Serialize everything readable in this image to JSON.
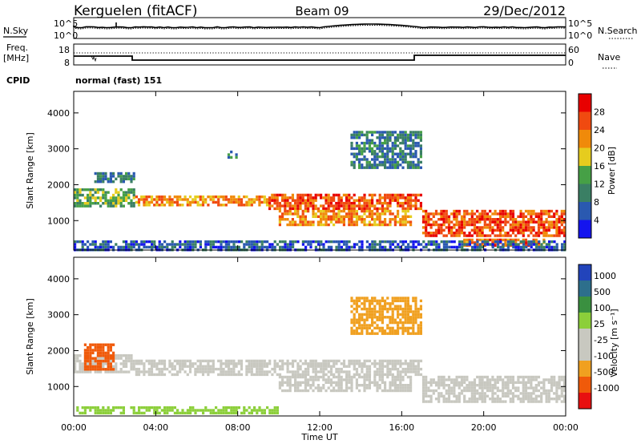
{
  "header": {
    "station": "Kerguelen (fitACF)",
    "beam": "Beam 09",
    "date": "29/Dec/2012"
  },
  "nsky": {
    "label": "N.Sky",
    "right_label": "N.Search",
    "tick_top": "10^5",
    "tick_bottom": "10^0",
    "right_tick_top": "10^5",
    "right_tick_bottom": "10^0"
  },
  "freq": {
    "label_line1": "Freq.",
    "label_line2": "[MHz]",
    "tick_top": "18",
    "tick_bottom": "8",
    "right_label": "Nave",
    "right_tick_top": "60",
    "right_tick_bottom": "0"
  },
  "cpid": {
    "label": "CPID",
    "mode": "normal (fast) 151"
  },
  "chart_data": [
    {
      "type": "heatmap",
      "panel": "power",
      "ylabel": "Slant Range [km]",
      "yticks": [
        "1000",
        "2000",
        "3000",
        "4000"
      ],
      "ylim": [
        180,
        4600
      ],
      "xlim_hours": [
        0,
        24
      ],
      "colorbar": {
        "label": "Power [dB]",
        "ticks": [
          "4",
          "8",
          "12",
          "16",
          "20",
          "24",
          "28"
        ],
        "range": [
          0,
          32
        ],
        "colors": [
          "#1414ee",
          "#2a59b0",
          "#3a7f64",
          "#46a046",
          "#e6cc1e",
          "#f08a0a",
          "#f04a10",
          "#e80000"
        ]
      },
      "bands": [
        {
          "t0": 0.0,
          "t1": 3.0,
          "r0": 1400,
          "r1": 1900,
          "level": 14
        },
        {
          "t0": 1.0,
          "t1": 3.0,
          "r0": 2050,
          "r1": 2350,
          "level": 9
        },
        {
          "t0": 3.0,
          "t1": 9.5,
          "r0": 1450,
          "r1": 1700,
          "level": 22
        },
        {
          "t0": 9.5,
          "t1": 17.0,
          "r0": 1350,
          "r1": 1750,
          "level": 26
        },
        {
          "t0": 10.0,
          "t1": 16.5,
          "r0": 900,
          "r1": 1300,
          "level": 22
        },
        {
          "t0": 17.0,
          "t1": 24.0,
          "r0": 600,
          "r1": 1300,
          "level": 26
        },
        {
          "t0": 19.0,
          "t1": 23.0,
          "r0": 300,
          "r1": 500,
          "level": 24
        },
        {
          "t0": 0.0,
          "t1": 24.0,
          "r0": 200,
          "r1": 450,
          "level": 6
        },
        {
          "t0": 13.5,
          "t1": 17.0,
          "r0": 2500,
          "r1": 3500,
          "level": 9
        },
        {
          "t0": 7.5,
          "t1": 8.0,
          "r0": 2750,
          "r1": 2950,
          "level": 10
        }
      ]
    },
    {
      "type": "heatmap",
      "panel": "velocity",
      "ylabel": "Slant Range [km]",
      "yticks": [
        "1000",
        "2000",
        "3000",
        "4000"
      ],
      "ylim": [
        180,
        4600
      ],
      "xlim_hours": [
        0,
        24
      ],
      "xticks": [
        "00:00",
        "04:00",
        "08:00",
        "12:00",
        "16:00",
        "20:00",
        "00:00"
      ],
      "xlabel": "Time UT",
      "colorbar": {
        "label": "Velocity [m s⁻¹]",
        "ticks": [
          "1000",
          "500",
          "100",
          "25",
          "-25",
          "-100",
          "-500",
          "-1000"
        ],
        "colors": [
          "#2244bb",
          "#2d6f8c",
          "#3a9040",
          "#8ccf3a",
          "#c8c8c0",
          "#c8c8c0",
          "#f0a020",
          "#f05a0a",
          "#e81010"
        ]
      },
      "bands": [
        {
          "t0": 0.0,
          "t1": 3.0,
          "r0": 1400,
          "r1": 1900,
          "level": 0
        },
        {
          "t0": 3.0,
          "t1": 17.0,
          "r0": 1350,
          "r1": 1750,
          "level": 0
        },
        {
          "t0": 10.0,
          "t1": 16.5,
          "r0": 900,
          "r1": 1300,
          "level": 0
        },
        {
          "t0": 17.0,
          "t1": 24.0,
          "r0": 600,
          "r1": 1300,
          "level": 0
        },
        {
          "t0": 0.0,
          "t1": 10.0,
          "r0": 250,
          "r1": 450,
          "level": 60
        },
        {
          "t0": 13.5,
          "t1": 17.0,
          "r0": 2500,
          "r1": 3500,
          "level": -60
        },
        {
          "t0": 0.5,
          "t1": 2.0,
          "r0": 1500,
          "r1": 2200,
          "level": -150
        }
      ]
    }
  ]
}
